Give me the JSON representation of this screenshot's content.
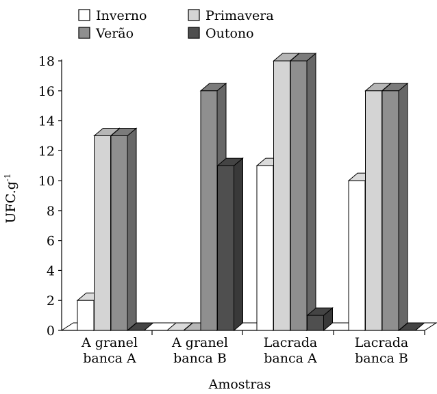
{
  "chart_data": {
    "type": "bar",
    "title": "",
    "xlabel": "Amostras",
    "ylabel": "UFC.g",
    "ylabel_superscript": "-1",
    "ylim": [
      0,
      18
    ],
    "yticks": [
      0,
      2,
      4,
      6,
      8,
      10,
      12,
      14,
      16,
      18
    ],
    "categories": [
      [
        "A granel",
        "banca A"
      ],
      [
        "A granel",
        "banca B"
      ],
      [
        "Lacrada",
        "banca A"
      ],
      [
        "Lacrada",
        "banca B"
      ]
    ],
    "series": [
      {
        "name": "Inverno",
        "color": "#ffffff",
        "values": [
          2,
          0,
          11,
          10
        ]
      },
      {
        "name": "Primavera",
        "color": "#d4d4d4",
        "values": [
          13,
          0,
          18,
          16
        ]
      },
      {
        "name": "Verão",
        "color": "#8f8f8f",
        "values": [
          13,
          16,
          18,
          16
        ]
      },
      {
        "name": "Outono",
        "color": "#4f4f4f",
        "values": [
          0,
          11,
          1,
          0
        ]
      }
    ],
    "legend_position": "top-left",
    "style": "3d-bars"
  }
}
